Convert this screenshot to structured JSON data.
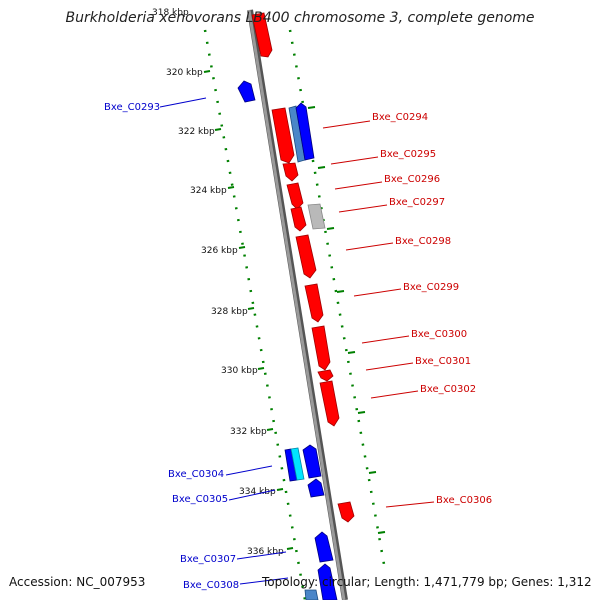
{
  "title": "Burkholderia xenovorans LB400 chromosome 3, complete genome",
  "accession": "Accession: NC_007953",
  "summary": "Topology: circular; Length: 1,471,779 bp; Genes: 1,312",
  "colors": {
    "forward": "#ff0000",
    "reverse": "#0000ff",
    "forward_label": "#cc0000",
    "reverse_label": "#0000cc",
    "backbone": "#888888",
    "tick_track": "#008000"
  },
  "kbp_ticks": [
    "318 kbp",
    "320 kbp",
    "322 kbp",
    "324 kbp",
    "326 kbp",
    "328 kbp",
    "330 kbp",
    "332 kbp",
    "334 kbp",
    "336 kbp"
  ],
  "forward_labels": [
    "Bxe_C0294",
    "Bxe_C0295",
    "Bxe_C0296",
    "Bxe_C0297",
    "Bxe_C0298",
    "Bxe_C0299",
    "Bxe_C0300",
    "Bxe_C0301",
    "Bxe_C0302",
    "Bxe_C0306"
  ],
  "reverse_labels": [
    "Bxe_C0293",
    "Bxe_C0304",
    "Bxe_C0305",
    "Bxe_C0307",
    "Bxe_C0308"
  ]
}
